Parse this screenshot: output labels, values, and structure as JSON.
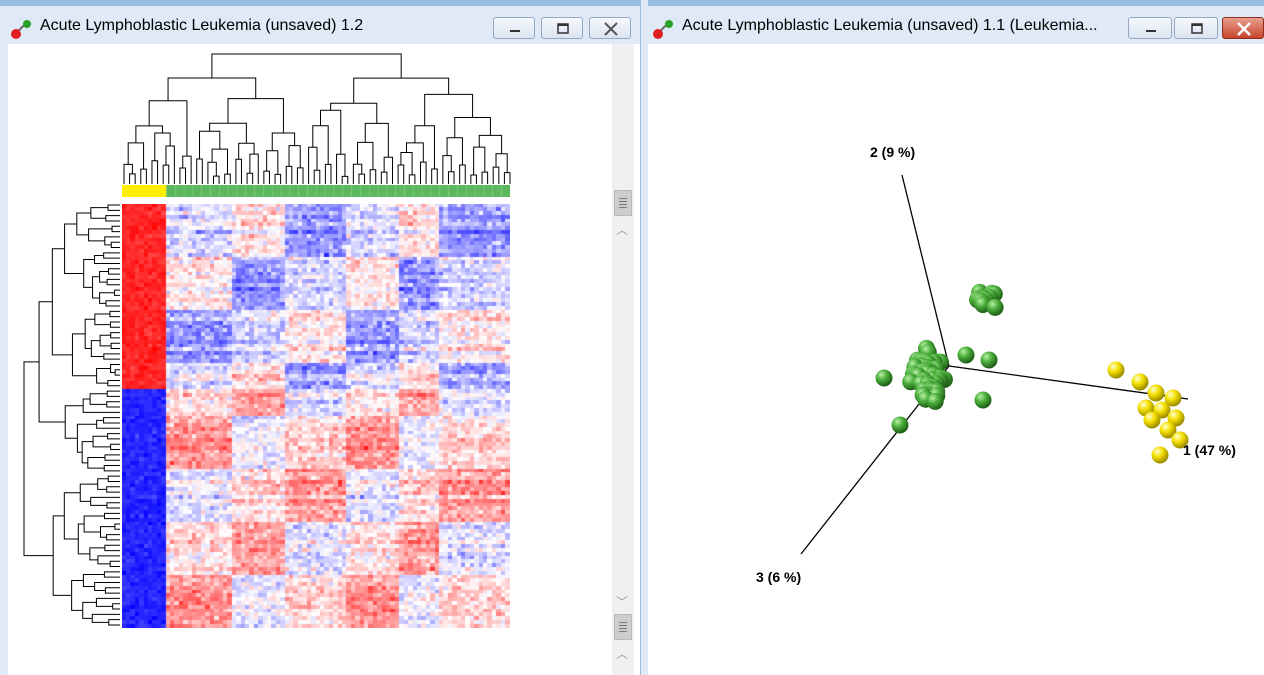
{
  "left_window": {
    "title": "Acute Lymphoblastic Leukemia (unsaved) 1.2",
    "controls": [
      "minimize",
      "maximize",
      "close"
    ],
    "heatmap": {
      "columns": 88,
      "rows": 112,
      "group_colors": {
        "yellow": "#ffee00",
        "green": "#5cb85c"
      },
      "yellow_columns": 10,
      "palette": {
        "high": "#ff0000",
        "mid": "#ffffff",
        "low": "#0000ff"
      }
    }
  },
  "right_window": {
    "title": "Acute Lymphoblastic Leukemia (unsaved) 1.1 (Leukemia...",
    "controls": [
      "minimize",
      "maximize",
      "close"
    ],
    "pca": {
      "axes": [
        {
          "id": "1",
          "label": "1 (47 %)"
        },
        {
          "id": "2",
          "label": "2 (9 %)"
        },
        {
          "id": "3",
          "label": "3 (6 %)"
        }
      ],
      "clusters": [
        {
          "name": "green",
          "color": "#4caf3c",
          "count": 72
        },
        {
          "name": "yellow",
          "color": "#f5e000",
          "count": 12
        }
      ]
    }
  },
  "colors": {
    "titlebar": "#dfeaf6",
    "titlebar_border": "#9bbde0",
    "close_button": "#c6442b"
  }
}
